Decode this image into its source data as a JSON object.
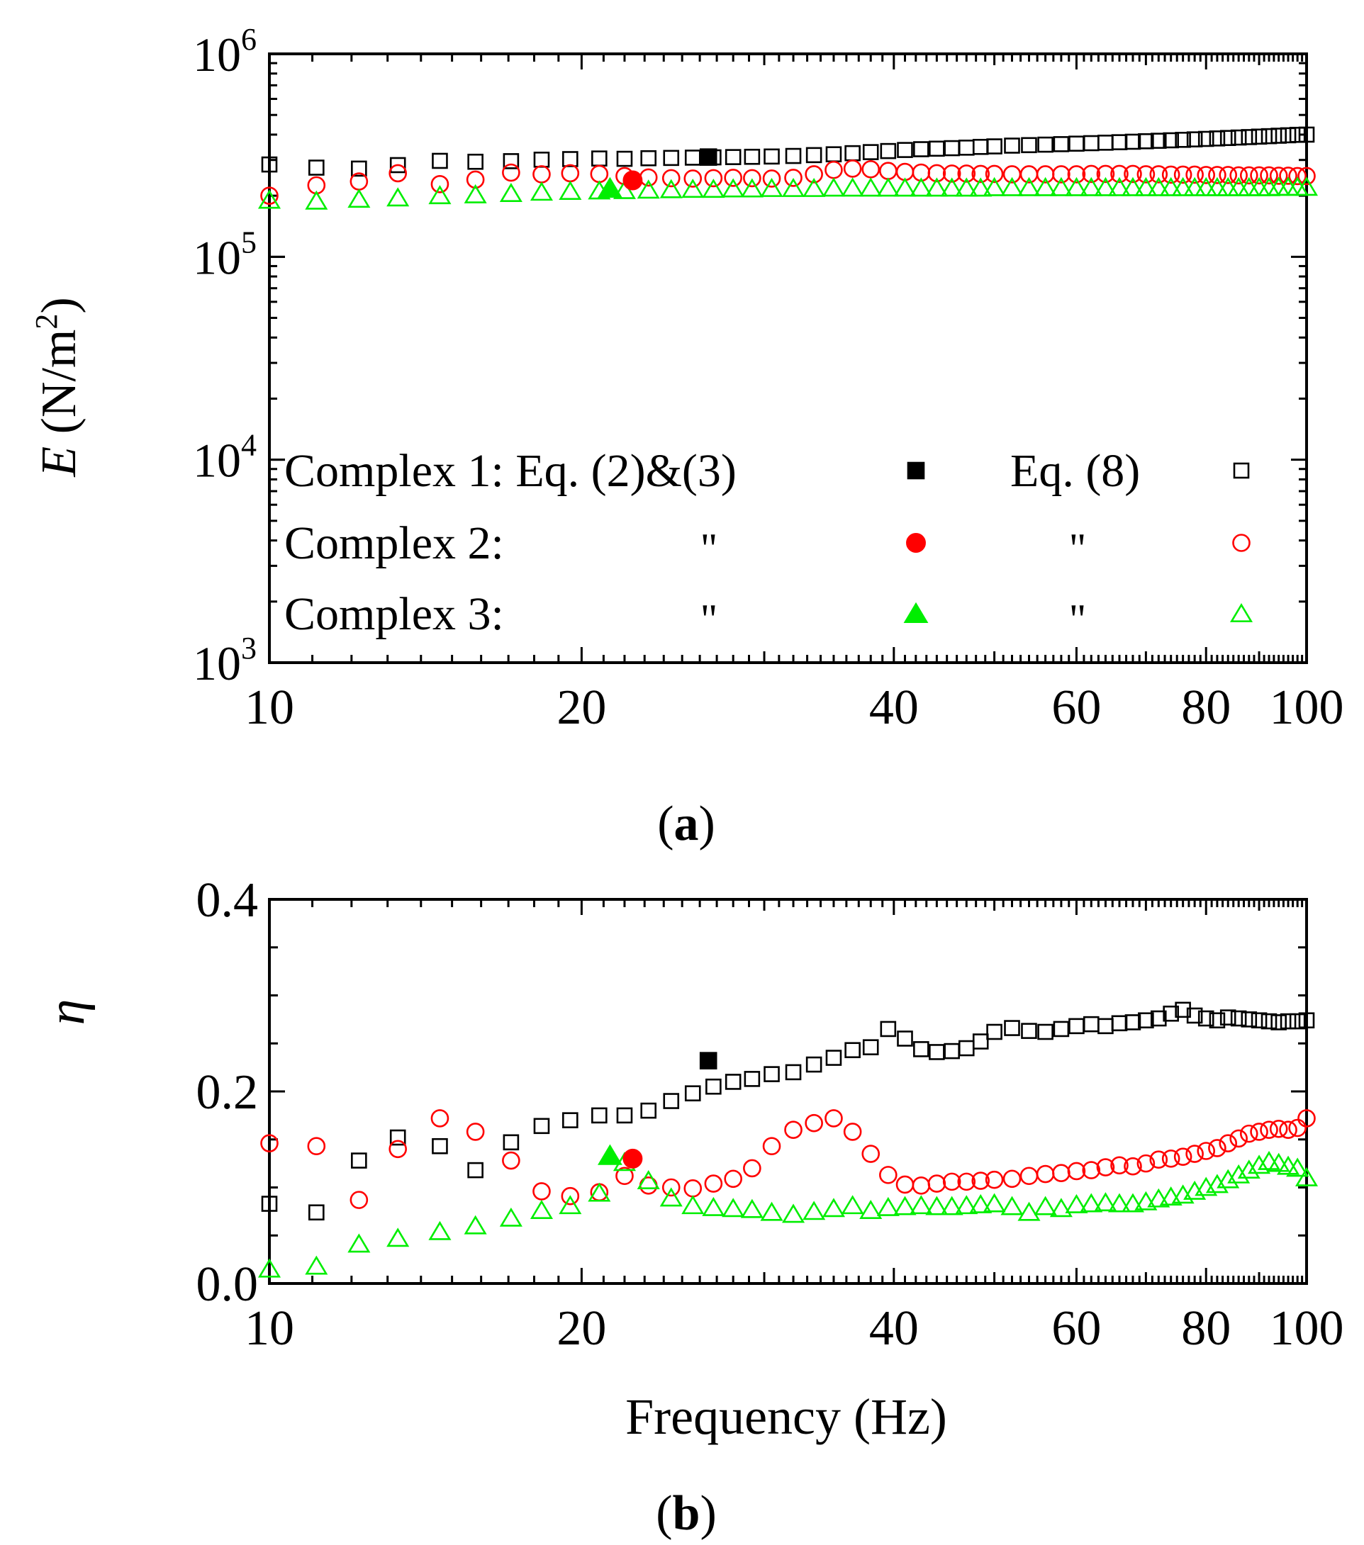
{
  "colors": {
    "complex1": "#000000",
    "complex2": "#ff0000",
    "complex3": "#00ee00",
    "axis": "#000000"
  },
  "legend": {
    "rows": [
      {
        "label": "Complex 1: Eq. (2)&(3)",
        "eq8_label": "Eq. (8)",
        "series": "complex1",
        "marker": "square"
      },
      {
        "label": "Complex 2:",
        "ditto_eq23": "\"",
        "ditto_eq8": "\"",
        "series": "complex2",
        "marker": "circle"
      },
      {
        "label": "Complex 3:",
        "ditto_eq23": "\"",
        "ditto_eq8": "\"",
        "series": "complex3",
        "marker": "triangle"
      }
    ]
  },
  "chart_data": [
    {
      "type": "scatter",
      "panel_label": "(a)",
      "panel_letter": "a",
      "title": "",
      "xlabel": "",
      "ylabel_italic": "E",
      "ylabel_rest": " (N/m",
      "ylabel_sup": "2",
      "ylabel_close": ")",
      "xscale": "log",
      "yscale": "log",
      "xlim": [
        10,
        100
      ],
      "ylim": [
        1000,
        1000000
      ],
      "xticks": [
        {
          "value": 10,
          "label": "10"
        },
        {
          "value": 20,
          "label": "20"
        },
        {
          "value": 40,
          "label": "40"
        },
        {
          "value": 60,
          "label": "60"
        },
        {
          "value": 80,
          "label": "80"
        },
        {
          "value": 100,
          "label": "100"
        }
      ],
      "yticks": [
        {
          "value": 1000,
          "base": "10",
          "exp": "3"
        },
        {
          "value": 10000,
          "base": "10",
          "exp": "4"
        },
        {
          "value": 100000,
          "base": "10",
          "exp": "5"
        },
        {
          "value": 1000000,
          "base": "10",
          "exp": "6"
        }
      ],
      "legend_position": "lower-left inside plot",
      "series": [
        {
          "name": "Complex 1: Eq. (2)&(3)",
          "color": "complex1",
          "marker": "square",
          "filled": true,
          "x": [
            26.5
          ],
          "y": [
            310000
          ]
        },
        {
          "name": "Complex 2: Eq. (2)&(3)",
          "color": "complex2",
          "marker": "circle",
          "filled": true,
          "x": [
            22.4
          ],
          "y": [
            238000
          ]
        },
        {
          "name": "Complex 3: Eq. (2)&(3)",
          "color": "complex3",
          "marker": "triangle",
          "filled": true,
          "x": [
            21.3
          ],
          "y": [
            217000
          ]
        },
        {
          "name": "Complex 1: Eq. (8)",
          "color": "complex1",
          "marker": "square",
          "filled": false,
          "x": [
            10,
            11.1,
            12.2,
            13.3,
            14.6,
            15.8,
            17.1,
            18.3,
            19.5,
            20.8,
            22,
            23.2,
            24.4,
            25.6,
            26.8,
            28,
            29.2,
            30.5,
            32,
            33.5,
            35,
            36.5,
            38,
            39.5,
            41,
            42.5,
            44,
            45.5,
            47,
            48.5,
            50,
            52,
            54,
            56,
            58,
            60,
            62,
            64,
            66,
            68,
            70,
            72,
            74,
            76,
            78,
            80,
            82,
            84,
            86,
            88,
            90,
            92,
            94,
            96,
            98,
            100
          ],
          "y": [
            285000,
            275000,
            272000,
            283000,
            297000,
            294000,
            296000,
            301000,
            303000,
            305000,
            304000,
            306000,
            307000,
            308000,
            309000,
            310000,
            311000,
            312000,
            314000,
            317000,
            320000,
            324000,
            328000,
            332000,
            336000,
            339000,
            341000,
            343000,
            345000,
            348000,
            350000,
            353000,
            355000,
            357000,
            359000,
            361000,
            363000,
            365000,
            367000,
            369000,
            371000,
            373000,
            375000,
            377000,
            379000,
            381000,
            383000,
            385000,
            387000,
            389000,
            391000,
            393000,
            395000,
            397000,
            399000,
            400000
          ]
        },
        {
          "name": "Complex 2: Eq. (8)",
          "color": "complex2",
          "marker": "circle",
          "filled": false,
          "x": [
            10,
            11.1,
            12.2,
            13.3,
            14.6,
            15.8,
            17.1,
            18.3,
            19.5,
            20.8,
            22,
            23.2,
            24.4,
            25.6,
            26.8,
            28,
            29.2,
            30.5,
            32,
            33.5,
            35,
            36.5,
            38,
            39.5,
            41,
            42.5,
            44,
            45.5,
            47,
            48.5,
            50,
            52,
            54,
            56,
            58,
            60,
            62,
            64,
            66,
            68,
            70,
            72,
            74,
            76,
            78,
            80,
            82,
            84,
            86,
            88,
            90,
            92,
            94,
            96,
            98,
            100
          ],
          "y": [
            200000,
            225000,
            235000,
            258000,
            228000,
            240000,
            260000,
            255000,
            258000,
            256000,
            250000,
            246000,
            244000,
            243000,
            244000,
            245000,
            244000,
            243000,
            245000,
            255000,
            268000,
            272000,
            270000,
            265000,
            262000,
            260000,
            258000,
            257000,
            257000,
            256000,
            256000,
            255000,
            255000,
            255000,
            255000,
            255000,
            256000,
            256000,
            256000,
            256000,
            255000,
            255000,
            254000,
            254000,
            254000,
            253000,
            253000,
            253000,
            252000,
            252000,
            252000,
            252000,
            251000,
            251000,
            250000,
            250000
          ]
        },
        {
          "name": "Complex 3: Eq. (8)",
          "color": "complex3",
          "marker": "triangle",
          "filled": false,
          "x": [
            10,
            11.1,
            12.2,
            13.3,
            14.6,
            15.8,
            17.1,
            18.3,
            19.5,
            20.8,
            22,
            23.2,
            24.4,
            25.6,
            26.8,
            28,
            29.2,
            30.5,
            32,
            33.5,
            35,
            36.5,
            38,
            39.5,
            41,
            42.5,
            44,
            45.5,
            47,
            48.5,
            50,
            52,
            54,
            56,
            58,
            60,
            62,
            64,
            66,
            68,
            70,
            72,
            74,
            76,
            78,
            80,
            82,
            84,
            86,
            88,
            90,
            92,
            94,
            96,
            98,
            100
          ],
          "y": [
            190000,
            188000,
            192000,
            195000,
            200000,
            202000,
            205000,
            208000,
            210000,
            211000,
            212000,
            213000,
            214000,
            215000,
            215000,
            216000,
            216000,
            217000,
            217000,
            217000,
            218000,
            218000,
            218000,
            218000,
            218000,
            218000,
            218000,
            218000,
            218000,
            218000,
            219000,
            219000,
            219000,
            219000,
            219000,
            219000,
            219000,
            219000,
            219000,
            219000,
            219000,
            219000,
            219000,
            219000,
            219000,
            219000,
            219000,
            219000,
            219000,
            219000,
            219000,
            219000,
            220000,
            220000,
            220000,
            220000
          ]
        }
      ]
    },
    {
      "type": "scatter",
      "panel_label": "(b)",
      "panel_letter": "b",
      "title": "",
      "xlabel": "Frequency (Hz)",
      "ylabel": "η",
      "xscale": "log",
      "yscale": "linear",
      "xlim": [
        10,
        100
      ],
      "ylim": [
        0,
        0.4
      ],
      "xticks": [
        {
          "value": 10,
          "label": "10"
        },
        {
          "value": 20,
          "label": "20"
        },
        {
          "value": 40,
          "label": "40"
        },
        {
          "value": 60,
          "label": "60"
        },
        {
          "value": 80,
          "label": "80"
        },
        {
          "value": 100,
          "label": "100"
        }
      ],
      "yticks": [
        {
          "value": 0,
          "label": "0.0"
        },
        {
          "value": 0.2,
          "label": "0.2"
        },
        {
          "value": 0.4,
          "label": "0.4"
        }
      ],
      "series": [
        {
          "name": "Complex 1: Eq. (2)&(3)",
          "color": "complex1",
          "marker": "square",
          "filled": true,
          "x": [
            26.5
          ],
          "y": [
            0.232
          ]
        },
        {
          "name": "Complex 2: Eq. (2)&(3)",
          "color": "complex2",
          "marker": "circle",
          "filled": true,
          "x": [
            22.4
          ],
          "y": [
            0.13
          ]
        },
        {
          "name": "Complex 3: Eq. (2)&(3)",
          "color": "complex3",
          "marker": "triangle",
          "filled": true,
          "x": [
            21.3
          ],
          "y": [
            0.133
          ]
        },
        {
          "name": "Complex 1: Eq. (8)",
          "color": "complex1",
          "marker": "square",
          "filled": false,
          "x": [
            10,
            11.1,
            12.2,
            13.3,
            14.6,
            15.8,
            17.1,
            18.3,
            19.5,
            20.8,
            22,
            23.2,
            24.4,
            25.6,
            26.8,
            28,
            29.2,
            30.5,
            32,
            33.5,
            35,
            36.5,
            38,
            39.5,
            41,
            42.5,
            44,
            45.5,
            47,
            48.5,
            50,
            52,
            54,
            56,
            58,
            60,
            62,
            64,
            66,
            68,
            70,
            72,
            74,
            76,
            78,
            80,
            82,
            84,
            86,
            88,
            90,
            92,
            94,
            96,
            98,
            100
          ],
          "y": [
            0.083,
            0.074,
            0.128,
            0.152,
            0.143,
            0.118,
            0.147,
            0.164,
            0.17,
            0.175,
            0.175,
            0.18,
            0.19,
            0.198,
            0.205,
            0.21,
            0.213,
            0.218,
            0.22,
            0.228,
            0.235,
            0.243,
            0.246,
            0.265,
            0.255,
            0.244,
            0.241,
            0.242,
            0.245,
            0.252,
            0.262,
            0.266,
            0.263,
            0.262,
            0.265,
            0.268,
            0.27,
            0.268,
            0.271,
            0.272,
            0.274,
            0.276,
            0.281,
            0.285,
            0.279,
            0.276,
            0.274,
            0.277,
            0.276,
            0.275,
            0.274,
            0.273,
            0.272,
            0.273,
            0.273,
            0.274
          ]
        },
        {
          "name": "Complex 2: Eq. (8)",
          "color": "complex2",
          "marker": "circle",
          "filled": false,
          "x": [
            10,
            11.1,
            12.2,
            13.3,
            14.6,
            15.8,
            17.1,
            18.3,
            19.5,
            20.8,
            22,
            23.2,
            24.4,
            25.6,
            26.8,
            28,
            29.2,
            30.5,
            32,
            33.5,
            35,
            36.5,
            38,
            39.5,
            41,
            42.5,
            44,
            45.5,
            47,
            48.5,
            50,
            52,
            54,
            56,
            58,
            60,
            62,
            64,
            66,
            68,
            70,
            72,
            74,
            76,
            78,
            80,
            82,
            84,
            86,
            88,
            90,
            92,
            94,
            96,
            98,
            100
          ],
          "y": [
            0.146,
            0.143,
            0.087,
            0.14,
            0.172,
            0.158,
            0.128,
            0.096,
            0.091,
            0.095,
            0.112,
            0.102,
            0.1,
            0.099,
            0.104,
            0.109,
            0.12,
            0.143,
            0.16,
            0.167,
            0.172,
            0.158,
            0.135,
            0.113,
            0.103,
            0.102,
            0.104,
            0.106,
            0.106,
            0.107,
            0.108,
            0.109,
            0.112,
            0.114,
            0.115,
            0.117,
            0.118,
            0.121,
            0.123,
            0.122,
            0.125,
            0.129,
            0.13,
            0.132,
            0.135,
            0.138,
            0.141,
            0.146,
            0.151,
            0.156,
            0.158,
            0.16,
            0.161,
            0.16,
            0.162,
            0.172
          ]
        },
        {
          "name": "Complex 3: Eq. (8)",
          "color": "complex3",
          "marker": "triangle",
          "filled": false,
          "x": [
            10,
            11.1,
            12.2,
            13.3,
            14.6,
            15.8,
            17.1,
            18.3,
            19.5,
            20.8,
            22,
            23.2,
            24.4,
            25.6,
            26.8,
            28,
            29.2,
            30.5,
            32,
            33.5,
            35,
            36.5,
            38,
            39.5,
            41,
            42.5,
            44,
            45.5,
            47,
            48.5,
            50,
            52,
            54,
            56,
            58,
            60,
            62,
            64,
            66,
            68,
            70,
            72,
            74,
            76,
            78,
            80,
            82,
            84,
            86,
            88,
            90,
            92,
            94,
            96,
            98,
            100
          ],
          "y": [
            0.015,
            0.018,
            0.041,
            0.047,
            0.054,
            0.06,
            0.068,
            0.076,
            0.081,
            0.094,
            0.126,
            0.107,
            0.089,
            0.081,
            0.079,
            0.078,
            0.077,
            0.074,
            0.072,
            0.075,
            0.078,
            0.081,
            0.076,
            0.079,
            0.08,
            0.081,
            0.08,
            0.08,
            0.081,
            0.082,
            0.083,
            0.08,
            0.074,
            0.08,
            0.078,
            0.082,
            0.083,
            0.084,
            0.083,
            0.083,
            0.085,
            0.088,
            0.09,
            0.092,
            0.096,
            0.1,
            0.103,
            0.108,
            0.113,
            0.118,
            0.123,
            0.127,
            0.125,
            0.122,
            0.12,
            0.11
          ]
        }
      ]
    }
  ]
}
